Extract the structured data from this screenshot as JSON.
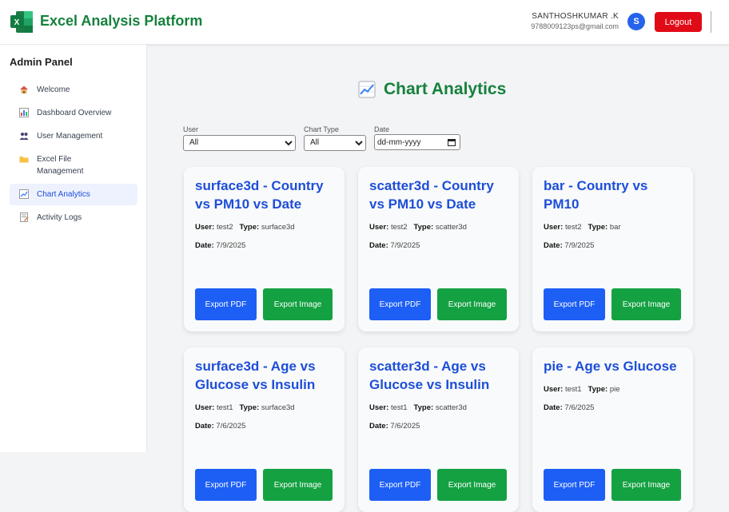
{
  "header": {
    "app_title": "Excel Analysis Platform",
    "user_name": "SANTHOSHKUMAR .K",
    "user_email": "9788009123ps@gmail.com",
    "avatar_initial": "S",
    "logout_label": "Logout"
  },
  "sidebar": {
    "title": "Admin Panel",
    "items": [
      {
        "label": "Welcome",
        "icon": "house-icon"
      },
      {
        "label": "Dashboard Overview",
        "icon": "bar-chart-icon"
      },
      {
        "label": "User Management",
        "icon": "users-icon"
      },
      {
        "label": "Excel File Management",
        "icon": "folder-icon"
      },
      {
        "label": "Chart Analytics",
        "icon": "line-chart-icon",
        "active": true
      },
      {
        "label": "Activity Logs",
        "icon": "memo-icon"
      }
    ]
  },
  "main": {
    "title": "Chart Analytics",
    "filters": {
      "user_label": "User",
      "user_value": "All",
      "chart_type_label": "Chart Type",
      "chart_type_value": "All",
      "date_label": "Date",
      "date_placeholder": "dd-mm-yyyy"
    },
    "labels": {
      "user": "User:",
      "type": "Type:",
      "date": "Date:",
      "export_pdf": "Export PDF",
      "export_image": "Export Image"
    },
    "cards": [
      {
        "title": "surface3d - Country vs PM10 vs Date",
        "user": "test2",
        "type": "surface3d",
        "date": "7/9/2025"
      },
      {
        "title": "scatter3d - Country vs PM10 vs Date",
        "user": "test2",
        "type": "scatter3d",
        "date": "7/9/2025"
      },
      {
        "title": "bar - Country vs PM10",
        "user": "test2",
        "type": "bar",
        "date": "7/9/2025"
      },
      {
        "title": "surface3d - Age vs Glucose vs Insulin",
        "user": "test1",
        "type": "surface3d",
        "date": "7/6/2025"
      },
      {
        "title": "scatter3d - Age vs Glucose vs Insulin",
        "user": "test1",
        "type": "scatter3d",
        "date": "7/6/2025"
      },
      {
        "title": "pie - Age vs Glucose",
        "user": "test1",
        "type": "pie",
        "date": "7/6/2025"
      }
    ]
  }
}
